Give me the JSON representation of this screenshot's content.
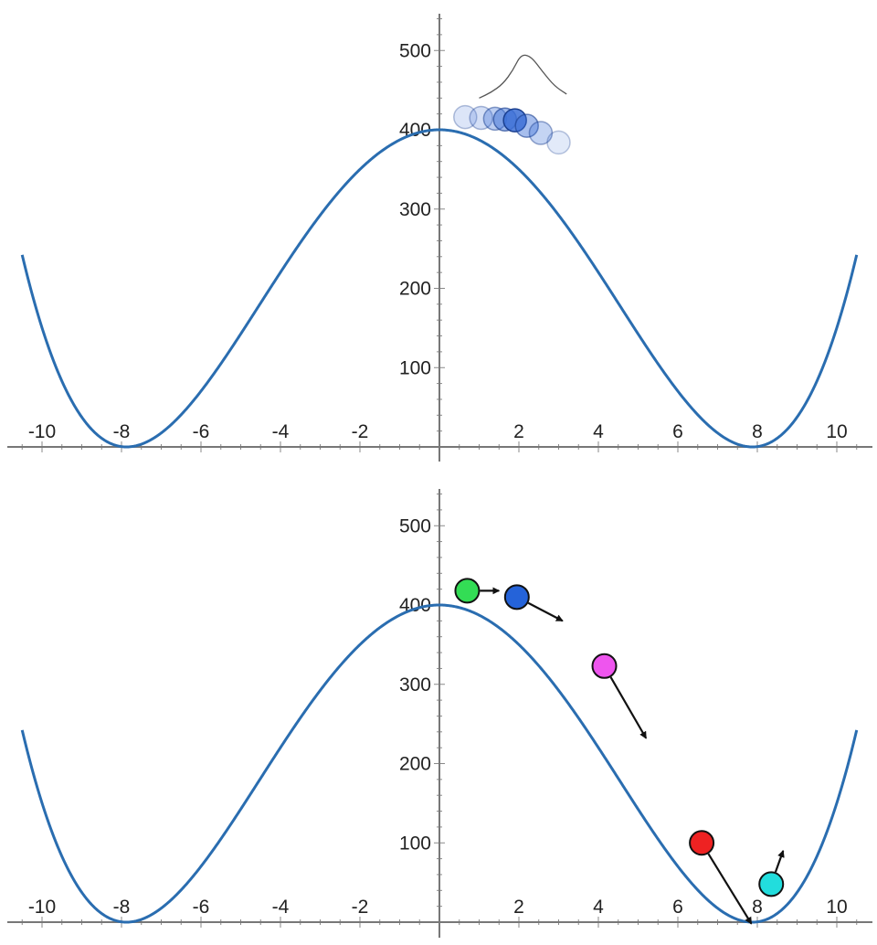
{
  "colors": {
    "curve": "#2a6db0",
    "axis": "#777777",
    "ball_stroke": "#111111",
    "arrow": "#111111",
    "ghost": "#3b6fd6",
    "pdf": "#555555"
  },
  "chart_data": [
    {
      "type": "line",
      "title": "",
      "xlabel": "",
      "ylabel": "",
      "xlim": [
        -10.5,
        10.5
      ],
      "ylim": [
        -10,
        545
      ],
      "x_ticks": [
        -10,
        -8,
        -6,
        -4,
        -2,
        2,
        4,
        6,
        8,
        10
      ],
      "y_ticks": [
        100,
        200,
        300,
        400,
        500
      ],
      "grid": false,
      "series": [
        {
          "function": "(x^2 - 62)^2 / 9.61",
          "x_range": [
            -10.5,
            10.5
          ],
          "values": [
            [
              -8,
              0
            ],
            [
              0,
              400
            ],
            [
              8,
              0
            ]
          ]
        }
      ],
      "ghost_balls": [
        {
          "x": 0.65,
          "y": 416,
          "opacity": 0.18
        },
        {
          "x": 1.05,
          "y": 415,
          "opacity": 0.22
        },
        {
          "x": 1.4,
          "y": 414,
          "opacity": 0.35
        },
        {
          "x": 1.65,
          "y": 413,
          "opacity": 0.5
        },
        {
          "x": 1.9,
          "y": 412,
          "opacity": 0.85
        },
        {
          "x": 2.2,
          "y": 405,
          "opacity": 0.45
        },
        {
          "x": 2.55,
          "y": 396,
          "opacity": 0.3
        },
        {
          "x": 3.0,
          "y": 384,
          "opacity": 0.15
        }
      ],
      "distribution": {
        "x": [
          1.0,
          1.3,
          1.6,
          1.85,
          2.05,
          2.3,
          2.6,
          2.9,
          3.2
        ],
        "y": [
          440,
          447,
          458,
          475,
          495,
          493,
          473,
          455,
          445
        ]
      }
    },
    {
      "type": "line",
      "title": "",
      "xlabel": "",
      "ylabel": "",
      "xlim": [
        -10.5,
        10.5
      ],
      "ylim": [
        -10,
        545
      ],
      "x_ticks": [
        -10,
        -8,
        -6,
        -4,
        -2,
        2,
        4,
        6,
        8,
        10
      ],
      "y_ticks": [
        100,
        200,
        300,
        400,
        500
      ],
      "grid": false,
      "series": [
        {
          "function": "(x^2 - 62)^2 / 9.61",
          "x_range": [
            -10.5,
            10.5
          ],
          "values": [
            [
              -8,
              0
            ],
            [
              0,
              400
            ],
            [
              8,
              0
            ]
          ]
        }
      ],
      "balls": [
        {
          "name": "green",
          "color": "#33dd55",
          "x": 0.7,
          "y": 418,
          "arrow_to": [
            1.5,
            418
          ]
        },
        {
          "name": "blue",
          "color": "#2563d9",
          "x": 1.95,
          "y": 410,
          "arrow_to": [
            3.1,
            380
          ]
        },
        {
          "name": "magenta",
          "color": "#ee55ee",
          "x": 4.15,
          "y": 323,
          "arrow_to": [
            5.2,
            232
          ]
        },
        {
          "name": "red",
          "color": "#ee2222",
          "x": 6.6,
          "y": 100,
          "arrow_to": [
            7.85,
            -2
          ]
        },
        {
          "name": "cyan",
          "color": "#22dddd",
          "x": 8.35,
          "y": 48,
          "arrow_to": [
            8.65,
            90
          ]
        }
      ]
    }
  ]
}
